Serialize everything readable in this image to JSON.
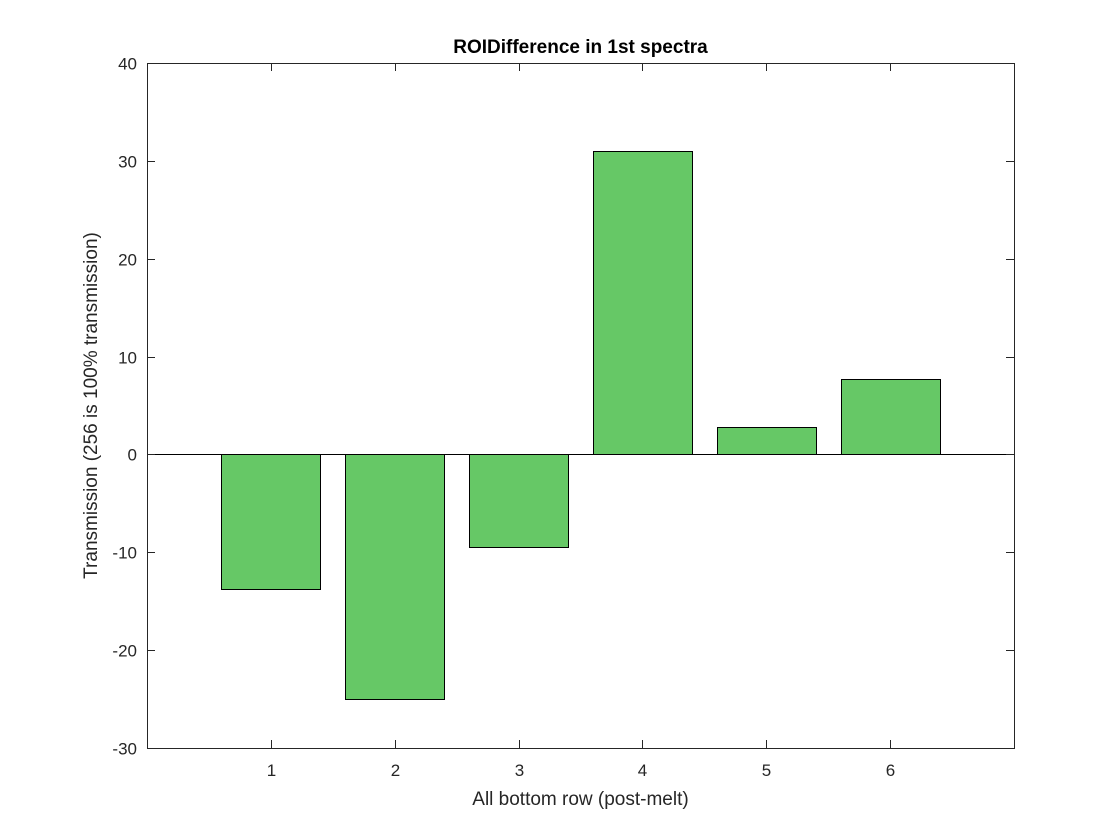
{
  "chart_data": {
    "type": "bar",
    "title": "ROIDifference in 1st spectra",
    "xlabel": "All bottom row (post-melt)",
    "ylabel": "Transmission (256 is 100% transmission)",
    "categories": [
      "1",
      "2",
      "3",
      "4",
      "5",
      "6"
    ],
    "values": [
      -13.8,
      -25.0,
      -9.5,
      31.0,
      2.8,
      7.7
    ],
    "xlim": [
      0,
      7
    ],
    "ylim": [
      -30,
      40
    ],
    "yticks": [
      -30,
      -20,
      -10,
      0,
      10,
      20,
      30,
      40
    ],
    "grid": false,
    "legend": "none",
    "bar_color": "#66c866"
  }
}
